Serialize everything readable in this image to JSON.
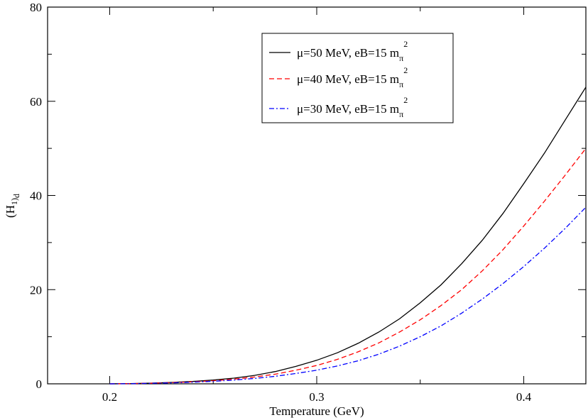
{
  "chart_data": {
    "type": "line",
    "title": "",
    "xlabel": "Temperature (GeV)",
    "ylabel": "(H",
    "ylabel_sub": "1)",
    "ylabel_sub2": "d",
    "xlim": [
      0.17,
      0.43
    ],
    "ylim": [
      0,
      80
    ],
    "x_ticks": [
      0.2,
      0.3,
      0.4
    ],
    "x_tick_labels": [
      "0.2",
      "0.3",
      "0.4"
    ],
    "y_ticks": [
      0,
      20,
      40,
      60,
      80
    ],
    "y_tick_labels": [
      "0",
      "20",
      "40",
      "60",
      "80"
    ],
    "x_minor_step": 0.05,
    "y_minor_step": 10,
    "legend_position": "top-right",
    "x": [
      0.2,
      0.21,
      0.22,
      0.23,
      0.24,
      0.25,
      0.26,
      0.27,
      0.28,
      0.29,
      0.3,
      0.31,
      0.32,
      0.33,
      0.34,
      0.35,
      0.36,
      0.37,
      0.38,
      0.39,
      0.4,
      0.41,
      0.42,
      0.43
    ],
    "series": [
      {
        "name": "μ=50 MeV, eB=15 m",
        "name_sub": "π",
        "name_sup": "2",
        "color": "#000000",
        "dash": "",
        "values": [
          0,
          0.05,
          0.15,
          0.3,
          0.5,
          0.8,
          1.2,
          1.8,
          2.6,
          3.7,
          5.0,
          6.6,
          8.6,
          11.0,
          13.8,
          17.2,
          21.0,
          25.5,
          30.5,
          36.2,
          42.5,
          49.0,
          56.0,
          63.0
        ]
      },
      {
        "name": "μ=40 MeV, eB=15 m",
        "name_sub": "π",
        "name_sup": "2",
        "color": "#ff0000",
        "dash": "7,4",
        "values": [
          0,
          0.04,
          0.12,
          0.25,
          0.42,
          0.66,
          1.0,
          1.45,
          2.05,
          2.9,
          3.9,
          5.2,
          6.8,
          8.7,
          11.0,
          13.6,
          16.6,
          20.0,
          24.0,
          28.5,
          33.5,
          38.8,
          44.3,
          50.0
        ]
      },
      {
        "name": "μ=30 MeV, eB=15 m",
        "name_sub": "π",
        "name_sup": "2",
        "color": "#0000ff",
        "dash": "7,3,2,3",
        "values": [
          0,
          0.03,
          0.1,
          0.2,
          0.34,
          0.53,
          0.8,
          1.15,
          1.6,
          2.2,
          2.9,
          3.8,
          4.9,
          6.3,
          8.0,
          10.0,
          12.3,
          15.0,
          18.0,
          21.3,
          24.9,
          28.8,
          33.0,
          37.5
        ]
      }
    ]
  }
}
